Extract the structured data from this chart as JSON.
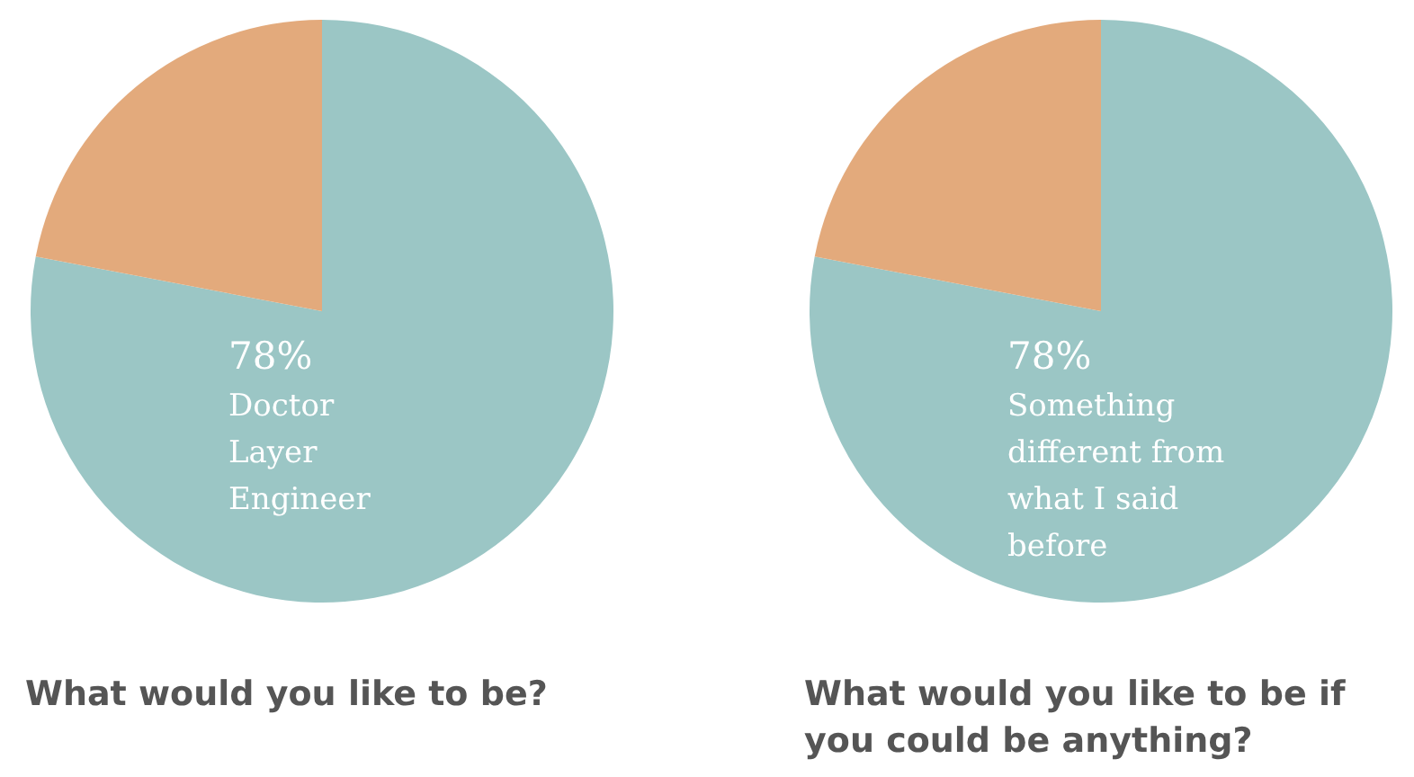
{
  "chart_data": [
    {
      "type": "pie",
      "title": "What would you like to be?",
      "categories": [
        "Doctor\nLayer\nEngineer",
        null
      ],
      "values": [
        78,
        22
      ],
      "colors": [
        "#9bc6c5",
        "#e3aa7c"
      ],
      "value_labels": [
        "78%",
        null
      ]
    },
    {
      "type": "pie",
      "title": "What would you like to be if you could be anything?",
      "categories": [
        "Something\ndifferent from\nwhat I said\nbefore",
        null
      ],
      "values": [
        78,
        22
      ],
      "colors": [
        "#9bc6c5",
        "#e3aa7c"
      ],
      "value_labels": [
        "78%",
        null
      ]
    }
  ]
}
